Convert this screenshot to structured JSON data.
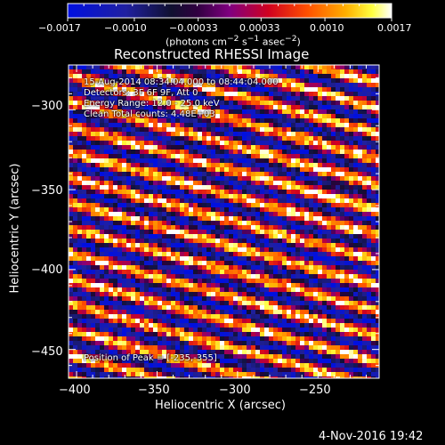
{
  "colorbar": {
    "ticks": [
      "−0.0017",
      "−0.0010",
      "−0.00033",
      "0.00033",
      "0.0010",
      "0.0017"
    ],
    "units_html": "(photons cm<sup>−2</sup> s<sup>−1</sup> asec<sup>−2</sup>)"
  },
  "chart_data": {
    "type": "heatmap",
    "title": "Reconstructed RHESSI Image",
    "xlabel": "Heliocentric X (arcsec)",
    "ylabel": "Heliocentric Y (arcsec)",
    "xlim": [
      -405,
      -212
    ],
    "ylim": [
      -468,
      -272
    ],
    "xticks": [
      -400,
      -350,
      -300,
      -250
    ],
    "yticks": [
      -300,
      -350,
      -400,
      -450
    ],
    "xtick_labels": [
      "−400",
      "−350",
      "−300",
      "−250"
    ],
    "ytick_labels": [
      "−300",
      "−350",
      "−400",
      "−450"
    ],
    "color_range": [
      -0.0017,
      0.0017
    ],
    "colormap": "blue-black-purple-red-orange-yellow-white",
    "pattern": "diagonal stripes descending to the right",
    "peak": [
      -235,
      -355
    ]
  },
  "info": {
    "time": "15-Aug-2014 08:34:04.000 to 08:44:04.000",
    "detectors": "Detectors: 3F 6F 9F, Att 0",
    "energy": "Energy Range: 12.0 - 25.0 keV",
    "clean": "Clean    Total counts: 4.48E+03",
    "peak": "Position of Peak = [-235,-355]"
  },
  "timestamp": "4-Nov-2016 19:42"
}
